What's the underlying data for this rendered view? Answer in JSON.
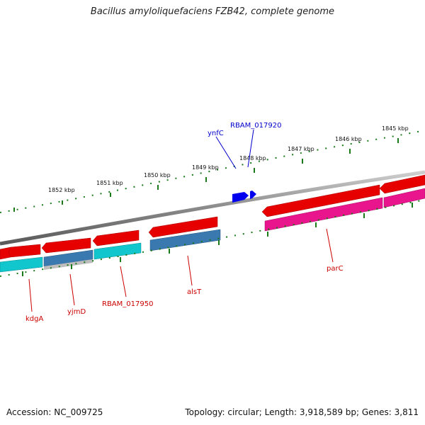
{
  "title": "Bacillus amyloliquefaciens FZB42, complete genome",
  "footer": {
    "accession": "Accession: NC_009725",
    "summary": "Topology: circular; Length: 3,918,589 bp; Genes: 3,811"
  },
  "colors": {
    "forward_gene": "#e60000",
    "reverse_gene_cyan": "#11c6cc",
    "reverse_gene_steel": "#3a79b0",
    "reverse_gene_magenta": "#e8158c",
    "selected_gene": "#0000ee",
    "label_red": "#cc0000",
    "label_blue": "#0000cc",
    "tick": "#1a7a1a",
    "backbone": "#8a8a8a"
  },
  "scale_labels": [
    "1852 kbp",
    "1851 kbp",
    "1850 kbp",
    "1849 kbp",
    "1848 kbp",
    "1847 kbp",
    "1846 kbp",
    "1845 kbp"
  ],
  "gene_labels": [
    {
      "id": "ynfC",
      "text": "ynfC",
      "color": "blue"
    },
    {
      "id": "RBAM_017920",
      "text": "RBAM_017920",
      "color": "blue"
    },
    {
      "id": "kdgA",
      "text": "kdgA",
      "color": "red"
    },
    {
      "id": "yjmD",
      "text": "yjmD",
      "color": "red"
    },
    {
      "id": "RBAM_017950",
      "text": "RBAM_017950",
      "color": "red"
    },
    {
      "id": "alsT",
      "text": "alsT",
      "color": "red"
    },
    {
      "id": "parC",
      "text": "parC",
      "color": "red"
    }
  ]
}
